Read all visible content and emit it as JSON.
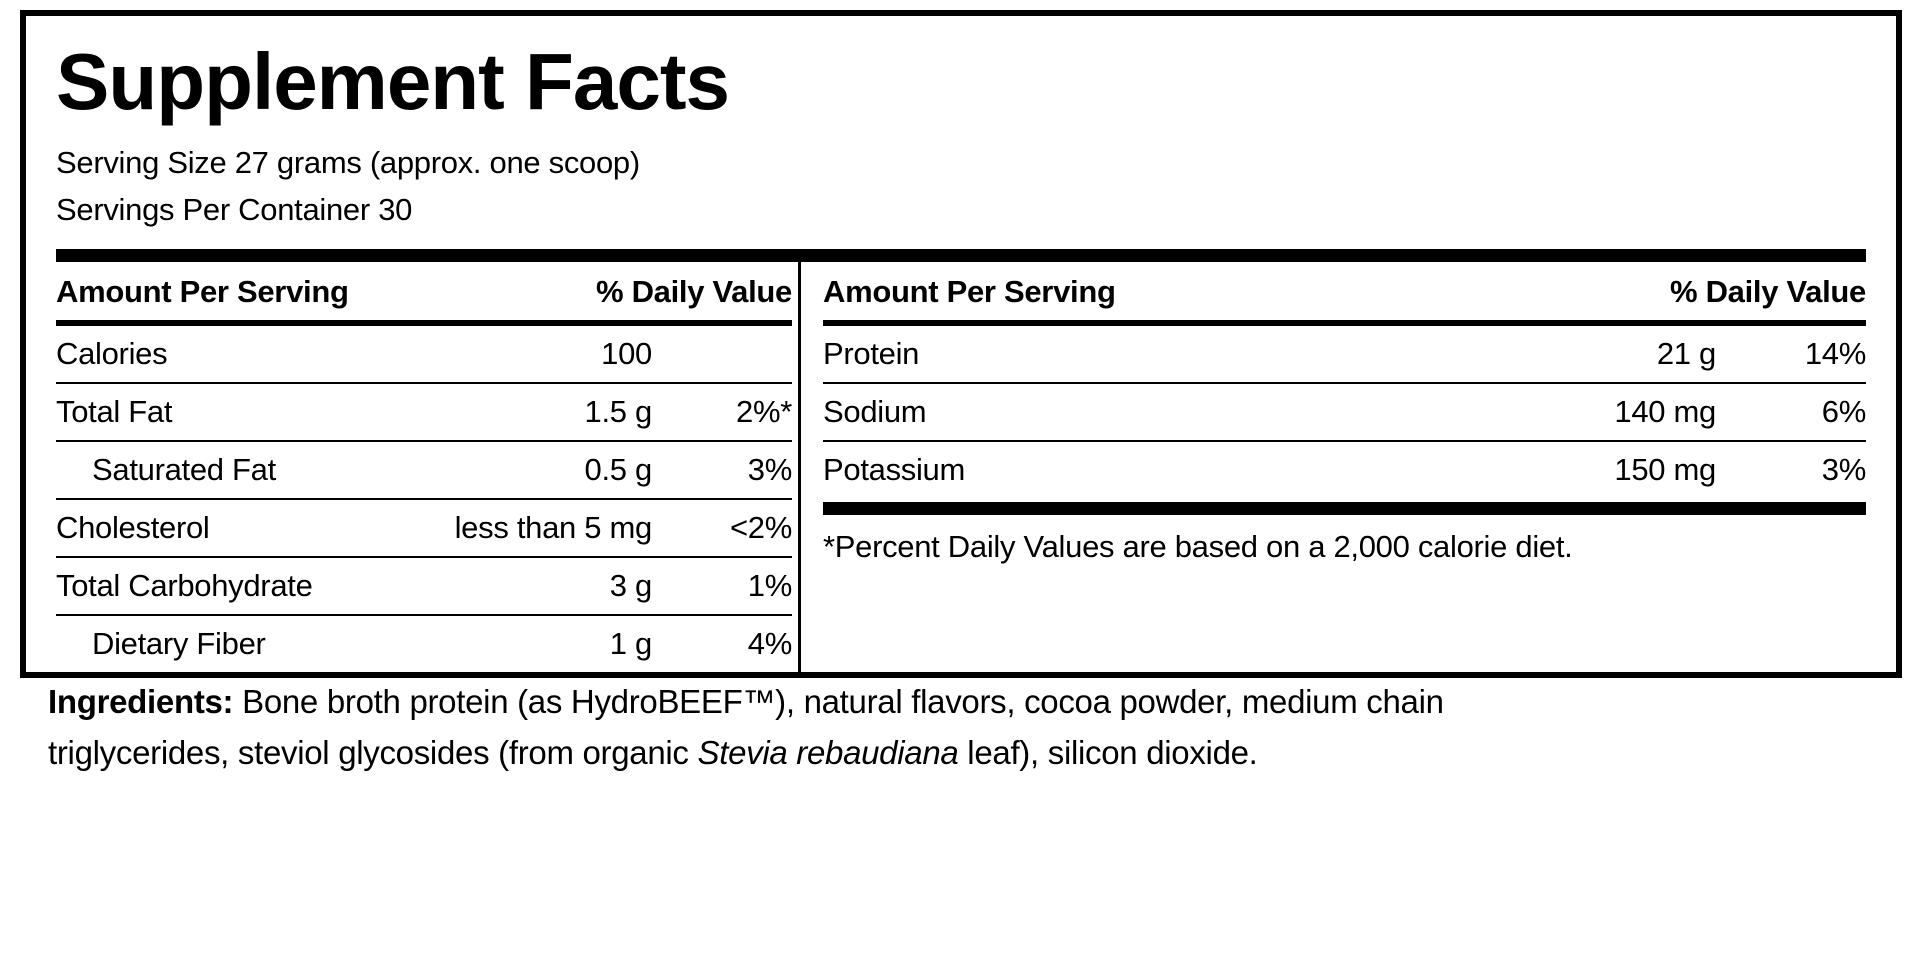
{
  "label": {
    "title": "Supplement Facts",
    "serving_size": "Serving Size 27 grams (approx. one scoop)",
    "servings_per_container": "Servings Per Container 30",
    "left_panel": {
      "header_amount": "Amount Per Serving",
      "header_dv": "% Daily Value",
      "rows": [
        {
          "name": "Calories",
          "amount": "100",
          "dv": ""
        },
        {
          "name": "Total Fat",
          "amount": "1.5 g",
          "dv": "2%*"
        },
        {
          "name": "Saturated Fat",
          "amount": "0.5 g",
          "dv": "3%"
        },
        {
          "name": "Cholesterol",
          "amount": "less than 5 mg",
          "dv": "<2%"
        },
        {
          "name": "Total Carbohydrate",
          "amount": "3 g",
          "dv": "1%"
        },
        {
          "name": "Dietary Fiber",
          "amount": "1 g",
          "dv": "4%"
        }
      ]
    },
    "right_panel": {
      "header_amount": "Amount Per Serving",
      "header_dv": "% Daily Value",
      "rows": [
        {
          "name": "Protein",
          "amount": "21 g",
          "dv": "14%"
        },
        {
          "name": "Sodium",
          "amount": "140 mg",
          "dv": "6%"
        },
        {
          "name": "Potassium",
          "amount": "150 mg",
          "dv": "3%"
        }
      ],
      "footnote": "*Percent Daily Values are based on a 2,000 calorie diet."
    },
    "ingredients": {
      "heading": "Ingredients:",
      "part1": " Bone broth protein (as HydroBEEF™), natural flavors, cocoa powder, medium chain triglycerides, steviol glycosides (from organic ",
      "italic": "Stevia rebaudiana",
      "part2": " leaf), silicon dioxide."
    },
    "colors": {
      "ink": "#000000",
      "paper": "#ffffff"
    }
  }
}
